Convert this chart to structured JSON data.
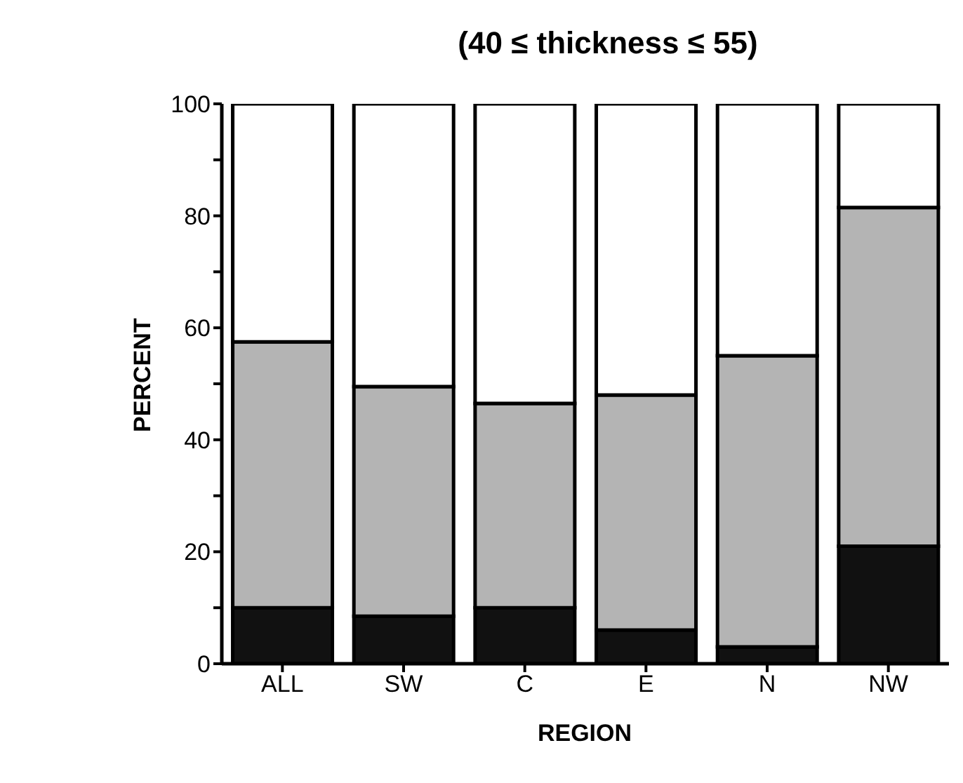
{
  "chart_data": {
    "type": "bar",
    "title": "(40 ≤ thickness ≤ 55)",
    "xlabel": "REGION",
    "ylabel": "PERCENT",
    "categories": [
      "ALL",
      "SW",
      "C",
      "E",
      "N",
      "NW"
    ],
    "stacked": true,
    "series": [
      {
        "color": "#111111",
        "values": [
          10,
          8.5,
          10,
          6,
          3,
          21
        ]
      },
      {
        "color": "#b4b4b4",
        "values": [
          47.5,
          41,
          36.5,
          42,
          52,
          60.5
        ]
      },
      {
        "color": "#ffffff",
        "values": [
          42.5,
          50.5,
          53.5,
          52,
          45,
          18.5
        ]
      }
    ],
    "ylim": [
      0,
      100
    ],
    "yticks": [
      0,
      {
        "value": 10,
        "label": null
      },
      20,
      {
        "value": 30,
        "label": null
      },
      40,
      {
        "value": 50,
        "label": null
      },
      60,
      {
        "value": 70,
        "label": null
      },
      80,
      {
        "value": 90,
        "label": null
      },
      100
    ],
    "grid": false,
    "legend": false
  }
}
